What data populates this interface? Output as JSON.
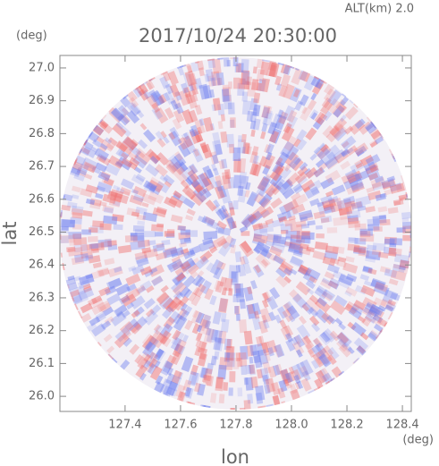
{
  "chart_data": {
    "type": "radar-field",
    "title": "2017/10/24 20:30:00",
    "altitude_label": "ALT(km) 2.0",
    "x_unit": "(deg)",
    "y_unit": "(deg)",
    "x_label": "lon",
    "y_label": "lat",
    "xlim": [
      127.165,
      128.432
    ],
    "ylim": [
      25.954,
      27.038
    ],
    "xticks": [
      127.4,
      127.6,
      127.8,
      {
        "value": 128,
        "label": "128.0"
      },
      128.2,
      128.4
    ],
    "yticks": [
      {
        "value": 26,
        "label": "26.0"
      },
      26.1,
      26.2,
      26.3,
      26.4,
      26.5,
      26.6,
      26.7,
      26.8,
      26.9,
      {
        "value": 27,
        "label": "27.0"
      }
    ]
  }
}
